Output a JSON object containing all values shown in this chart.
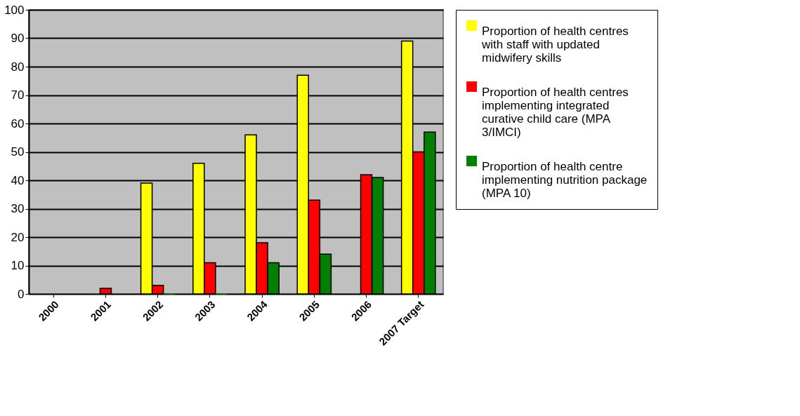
{
  "chart_data": {
    "type": "bar",
    "categories": [
      "2000",
      "2001",
      "2002",
      "2003",
      "2004",
      "2005",
      "2006",
      "2007 Target"
    ],
    "series": [
      {
        "name": "Proportion of health centres with staff with updated midwifery skills",
        "color": "#ffff00",
        "values": [
          null,
          null,
          39,
          46,
          56,
          77,
          null,
          89
        ]
      },
      {
        "name": "Proportion of health centres implementing integrated curative child care (MPA 3/IMCI)",
        "color": "#ff0000",
        "values": [
          null,
          2,
          3,
          11,
          18,
          33,
          42,
          50
        ]
      },
      {
        "name": "Proportion of health centre implementing nutrition package (MPA 10)",
        "color": "#008000",
        "values": [
          null,
          null,
          0,
          0,
          11,
          14,
          41,
          57
        ]
      }
    ],
    "ylim": [
      0,
      100
    ],
    "yticks": [
      0,
      10,
      20,
      30,
      40,
      50,
      60,
      70,
      80,
      90,
      100
    ],
    "grid": "y",
    "legend": "right"
  }
}
